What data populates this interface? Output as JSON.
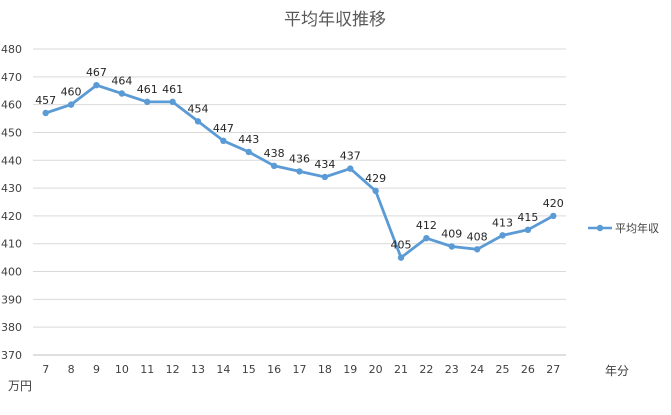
{
  "chart_data": {
    "type": "line",
    "title": "平均年収推移",
    "x": [
      7,
      8,
      9,
      10,
      11,
      12,
      13,
      14,
      15,
      16,
      17,
      18,
      19,
      20,
      21,
      22,
      23,
      24,
      25,
      26,
      27
    ],
    "series": [
      {
        "name": "平均年収",
        "values": [
          457,
          460,
          467,
          464,
          461,
          461,
          454,
          447,
          443,
          438,
          436,
          434,
          437,
          429,
          405,
          412,
          409,
          408,
          413,
          415,
          420
        ],
        "color": "#5b9bd5"
      }
    ],
    "xlabel": "年分",
    "ylabel": "万円",
    "ylim": [
      370,
      480
    ],
    "yticks": [
      370,
      380,
      390,
      400,
      410,
      420,
      430,
      440,
      450,
      460,
      470,
      480
    ],
    "grid": true,
    "legend": "right",
    "data_labels": true
  }
}
